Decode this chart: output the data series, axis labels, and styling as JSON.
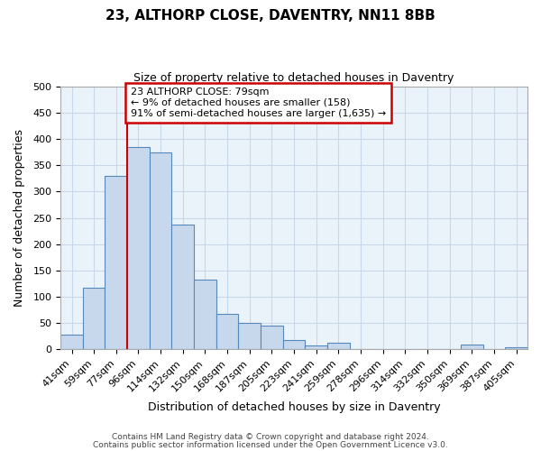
{
  "title": "23, ALTHORP CLOSE, DAVENTRY, NN11 8BB",
  "subtitle": "Size of property relative to detached houses in Daventry",
  "xlabel": "Distribution of detached houses by size in Daventry",
  "ylabel": "Number of detached properties",
  "bin_labels": [
    "41sqm",
    "59sqm",
    "77sqm",
    "96sqm",
    "114sqm",
    "132sqm",
    "150sqm",
    "168sqm",
    "187sqm",
    "205sqm",
    "223sqm",
    "241sqm",
    "259sqm",
    "278sqm",
    "296sqm",
    "314sqm",
    "332sqm",
    "350sqm",
    "369sqm",
    "387sqm",
    "405sqm"
  ],
  "bar_heights": [
    28,
    117,
    330,
    385,
    375,
    237,
    133,
    68,
    50,
    46,
    18,
    7,
    13,
    0,
    0,
    0,
    0,
    0,
    10,
    0,
    5
  ],
  "bar_color": "#c8d8ec",
  "bar_edge_color": "#5588bb",
  "grid_color": "#c8d8e8",
  "background_color": "#eaf2fa",
  "red_line_index": 2,
  "annotation_line1": "23 ALTHORP CLOSE: 79sqm",
  "annotation_line2": "← 9% of detached houses are smaller (158)",
  "annotation_line3": "91% of semi-detached houses are larger (1,635) →",
  "annotation_box_color": "#ffffff",
  "annotation_box_edge": "#cc0000",
  "ylim": [
    0,
    500
  ],
  "yticks": [
    0,
    50,
    100,
    150,
    200,
    250,
    300,
    350,
    400,
    450,
    500
  ],
  "footer_line1": "Contains HM Land Registry data © Crown copyright and database right 2024.",
  "footer_line2": "Contains public sector information licensed under the Open Government Licence v3.0."
}
